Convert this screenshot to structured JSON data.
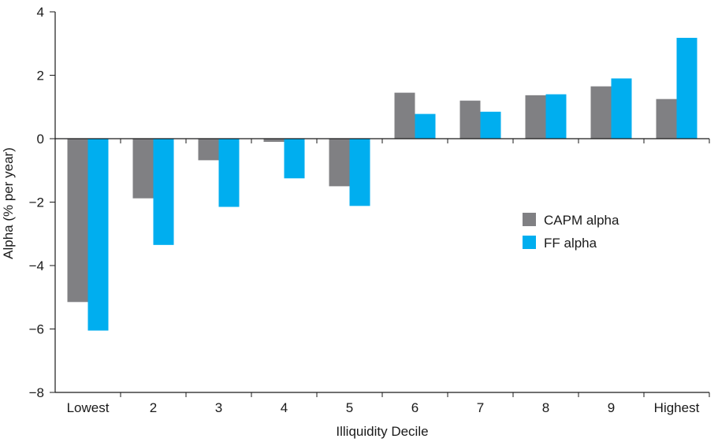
{
  "chart_data": {
    "type": "bar",
    "categories": [
      "Lowest",
      "2",
      "3",
      "4",
      "5",
      "6",
      "7",
      "8",
      "9",
      "Highest"
    ],
    "series": [
      {
        "name": "CAPM alpha",
        "color": "#808083",
        "values": [
          -5.15,
          -1.88,
          -0.68,
          -0.1,
          -1.5,
          1.45,
          1.2,
          1.37,
          1.65,
          1.25
        ]
      },
      {
        "name": "FF alpha",
        "color": "#00aeef",
        "values": [
          -6.05,
          -3.35,
          -2.15,
          -1.25,
          -2.12,
          0.78,
          0.85,
          1.4,
          1.9,
          3.18
        ]
      }
    ],
    "xlabel": "Illiquidity Decile",
    "ylabel": "Alpha (% per year)",
    "ylim": [
      -8,
      4
    ],
    "yticks": [
      "4",
      "2",
      "0",
      "−2",
      "−4",
      "−6",
      "−8"
    ],
    "ytick_values": [
      4,
      2,
      0,
      -2,
      -4,
      -6,
      -8
    ],
    "grid": false,
    "legend_position": "right"
  }
}
